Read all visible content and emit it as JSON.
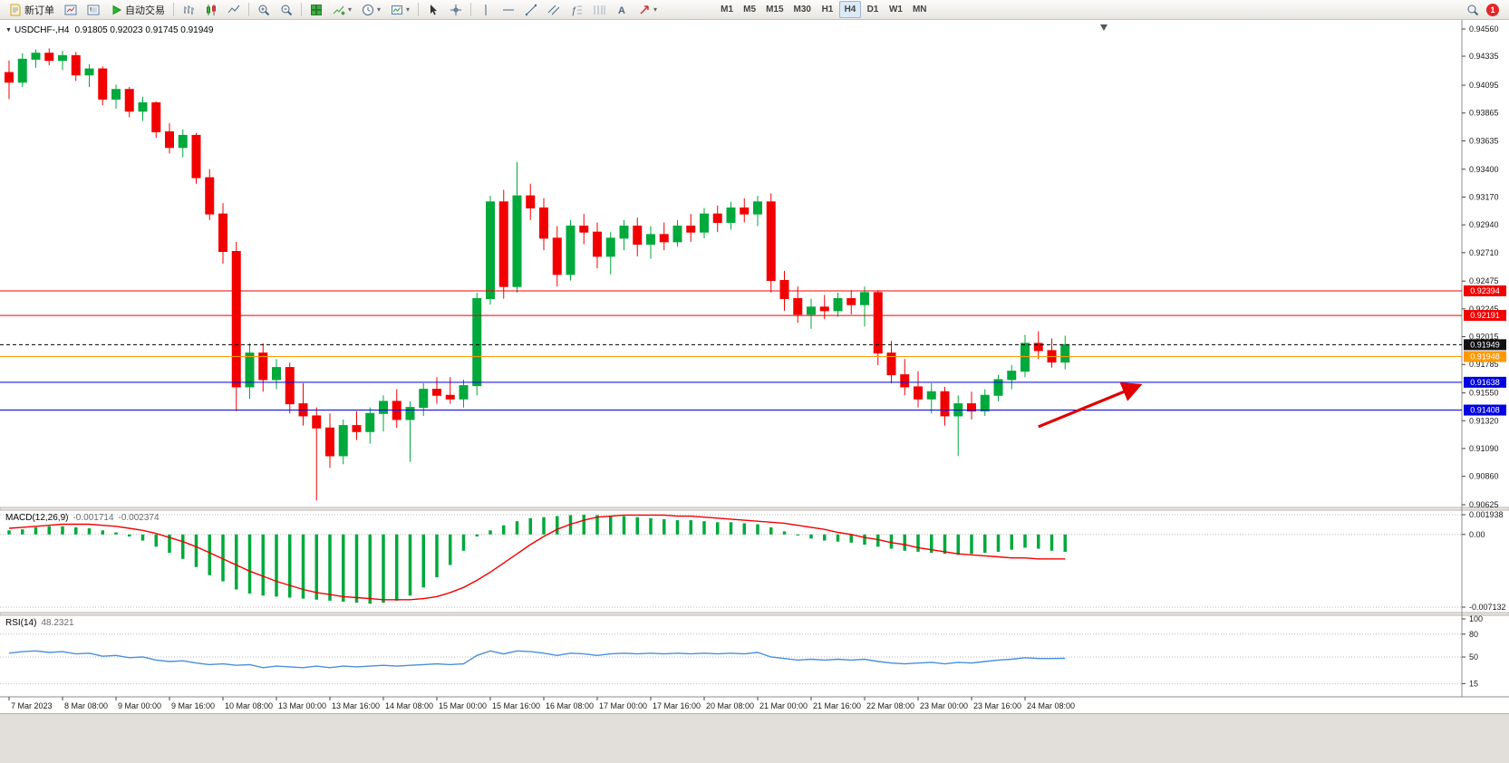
{
  "toolbar": {
    "new_order_label": "新订单",
    "auto_trading_label": "自动交易",
    "timeframes": [
      "M1",
      "M5",
      "M15",
      "M30",
      "H1",
      "H4",
      "D1",
      "W1",
      "MN"
    ],
    "active_timeframe": "H4",
    "notification_count": "1"
  },
  "chart": {
    "symbol_label": "USDCHF-,H4",
    "ohlc_text": "0.91805 0.92023 0.91745 0.91949"
  },
  "chart_data": {
    "type": "candlestick",
    "symbol": "USDCHF-",
    "timeframe": "H4",
    "ohlc_current": {
      "open": 0.91805,
      "high": 0.92023,
      "low": 0.91745,
      "close": 0.91949
    },
    "current_price": 0.91949,
    "colors": {
      "up": "#00A93C",
      "down": "#F20000",
      "macd_hist": "#00A93C",
      "macd_signal": "#F20000",
      "rsi": "#4A90D9",
      "level_red": "#F20000",
      "level_blue": "#0000E0",
      "level_orange": "#FF9900",
      "annotation": "#E00000"
    },
    "price_axis": [
      0.9456,
      0.94335,
      0.94095,
      0.93865,
      0.93635,
      0.934,
      0.9317,
      0.9294,
      0.9271,
      0.92475,
      0.92245,
      0.92015,
      0.91785,
      0.9155,
      0.9132,
      0.9109,
      0.9086,
      0.90625
    ],
    "time_axis": [
      "7 Mar 2023",
      "8 Mar 08:00",
      "9 Mar 00:00",
      "9 Mar 16:00",
      "10 Mar 08:00",
      "13 Mar 00:00",
      "13 Mar 16:00",
      "14 Mar 08:00",
      "15 Mar 00:00",
      "15 Mar 16:00",
      "16 Mar 08:00",
      "17 Mar 00:00",
      "17 Mar 16:00",
      "20 Mar 08:00",
      "21 Mar 00:00",
      "21 Mar 16:00",
      "22 Mar 08:00",
      "23 Mar 00:00",
      "23 Mar 16:00",
      "24 Mar 08:00"
    ],
    "levels": [
      {
        "price": 0.92394,
        "label": "0.92394",
        "color": "#F20000"
      },
      {
        "price": 0.92191,
        "label": "0.92191",
        "color": "#F20000"
      },
      {
        "price": 0.91948,
        "label": "0.91948",
        "color": "#FF9900"
      },
      {
        "price": 0.91638,
        "label": "0.91638",
        "color": "#0000E0"
      },
      {
        "price": 0.91408,
        "label": "0.91408",
        "color": "#0000E0"
      }
    ],
    "annotation_arrow": {
      "color": "#E00000",
      "from": {
        "t": 77,
        "p": 0.9127
      },
      "to": {
        "t": 84.5,
        "p": 0.9161
      }
    },
    "candles": [
      [
        0.942,
        0.943,
        0.9398,
        0.9412
      ],
      [
        0.9412,
        0.9436,
        0.9408,
        0.9431
      ],
      [
        0.9431,
        0.9439,
        0.9424,
        0.9436
      ],
      [
        0.9436,
        0.944,
        0.9426,
        0.943
      ],
      [
        0.943,
        0.9438,
        0.9422,
        0.9434
      ],
      [
        0.9434,
        0.9437,
        0.9413,
        0.9418
      ],
      [
        0.9418,
        0.9427,
        0.9408,
        0.9423
      ],
      [
        0.9423,
        0.9425,
        0.9393,
        0.9398
      ],
      [
        0.9398,
        0.941,
        0.939,
        0.9406
      ],
      [
        0.9406,
        0.9408,
        0.9383,
        0.9388
      ],
      [
        0.9388,
        0.94,
        0.938,
        0.9395
      ],
      [
        0.9395,
        0.9396,
        0.9366,
        0.9371
      ],
      [
        0.9371,
        0.9378,
        0.9353,
        0.9358
      ],
      [
        0.9358,
        0.9373,
        0.935,
        0.9368
      ],
      [
        0.9368,
        0.937,
        0.9328,
        0.9333
      ],
      [
        0.9333,
        0.934,
        0.9298,
        0.9303
      ],
      [
        0.9303,
        0.9312,
        0.9262,
        0.9272
      ],
      [
        0.9272,
        0.928,
        0.914,
        0.916
      ],
      [
        0.916,
        0.9196,
        0.915,
        0.9188
      ],
      [
        0.9188,
        0.9196,
        0.9156,
        0.9166
      ],
      [
        0.9166,
        0.9183,
        0.9158,
        0.9176
      ],
      [
        0.9176,
        0.918,
        0.9138,
        0.9146
      ],
      [
        0.9146,
        0.9163,
        0.9128,
        0.9136
      ],
      [
        0.9136,
        0.9143,
        0.9066,
        0.9126
      ],
      [
        0.9126,
        0.9138,
        0.9093,
        0.9103
      ],
      [
        0.9103,
        0.9133,
        0.9096,
        0.9128
      ],
      [
        0.9128,
        0.914,
        0.9116,
        0.9123
      ],
      [
        0.9123,
        0.9143,
        0.9113,
        0.9138
      ],
      [
        0.9138,
        0.9153,
        0.9123,
        0.9148
      ],
      [
        0.9148,
        0.9158,
        0.9126,
        0.9133
      ],
      [
        0.9133,
        0.9148,
        0.9098,
        0.9143
      ],
      [
        0.9143,
        0.9163,
        0.9136,
        0.9158
      ],
      [
        0.9158,
        0.9168,
        0.9146,
        0.9153
      ],
      [
        0.9153,
        0.9168,
        0.9146,
        0.915
      ],
      [
        0.915,
        0.9166,
        0.9143,
        0.9161
      ],
      [
        0.9161,
        0.9238,
        0.9153,
        0.9233
      ],
      [
        0.9233,
        0.9318,
        0.9228,
        0.9313
      ],
      [
        0.9313,
        0.9323,
        0.9233,
        0.9243
      ],
      [
        0.9243,
        0.9346,
        0.9238,
        0.9318
      ],
      [
        0.9318,
        0.9328,
        0.9298,
        0.9308
      ],
      [
        0.9308,
        0.9316,
        0.9273,
        0.9283
      ],
      [
        0.9283,
        0.9293,
        0.9243,
        0.9253
      ],
      [
        0.9253,
        0.9298,
        0.9248,
        0.9293
      ],
      [
        0.9293,
        0.9303,
        0.9278,
        0.9288
      ],
      [
        0.9288,
        0.9296,
        0.9258,
        0.9268
      ],
      [
        0.9268,
        0.9288,
        0.9253,
        0.9283
      ],
      [
        0.9283,
        0.9298,
        0.9273,
        0.9293
      ],
      [
        0.9293,
        0.93,
        0.9268,
        0.9278
      ],
      [
        0.9278,
        0.9293,
        0.9266,
        0.9286
      ],
      [
        0.9286,
        0.9296,
        0.9273,
        0.928
      ],
      [
        0.928,
        0.9298,
        0.9276,
        0.9293
      ],
      [
        0.9293,
        0.9303,
        0.928,
        0.9288
      ],
      [
        0.9288,
        0.9308,
        0.9283,
        0.9303
      ],
      [
        0.9303,
        0.931,
        0.9288,
        0.9296
      ],
      [
        0.9296,
        0.9313,
        0.929,
        0.9308
      ],
      [
        0.9308,
        0.9316,
        0.9296,
        0.9303
      ],
      [
        0.9303,
        0.9318,
        0.9293,
        0.9313
      ],
      [
        0.9313,
        0.932,
        0.9238,
        0.9248
      ],
      [
        0.9248,
        0.9256,
        0.9223,
        0.9233
      ],
      [
        0.9233,
        0.9243,
        0.9213,
        0.922
      ],
      [
        0.922,
        0.9233,
        0.9208,
        0.9226
      ],
      [
        0.9226,
        0.9236,
        0.9216,
        0.9223
      ],
      [
        0.9223,
        0.9238,
        0.9218,
        0.9233
      ],
      [
        0.9233,
        0.924,
        0.922,
        0.9228
      ],
      [
        0.9228,
        0.9243,
        0.921,
        0.9238
      ],
      [
        0.9238,
        0.924,
        0.9178,
        0.9188
      ],
      [
        0.9188,
        0.9198,
        0.9163,
        0.917
      ],
      [
        0.917,
        0.9183,
        0.9153,
        0.916
      ],
      [
        0.916,
        0.9173,
        0.9143,
        0.915
      ],
      [
        0.915,
        0.9163,
        0.9138,
        0.9156
      ],
      [
        0.9156,
        0.916,
        0.9128,
        0.9136
      ],
      [
        0.9136,
        0.9153,
        0.9103,
        0.9146
      ],
      [
        0.9146,
        0.9156,
        0.9133,
        0.914
      ],
      [
        0.914,
        0.9158,
        0.9136,
        0.9153
      ],
      [
        0.9153,
        0.917,
        0.9148,
        0.9166
      ],
      [
        0.9166,
        0.9178,
        0.9158,
        0.9173
      ],
      [
        0.9173,
        0.9203,
        0.9168,
        0.9196
      ],
      [
        0.9196,
        0.9206,
        0.9183,
        0.919
      ],
      [
        0.919,
        0.92,
        0.9176,
        0.91805
      ],
      [
        0.91805,
        0.92023,
        0.91745,
        0.91949
      ]
    ],
    "macd": {
      "name": "MACD(12,26,9)",
      "value_main": "-0.001714",
      "value_signal": "-0.002374",
      "scale_max": 0.001938,
      "scale_min": -0.007132,
      "axis_labels": [
        {
          "v": 0.001938,
          "t": "0.001938"
        },
        {
          "v": 0,
          "t": "0.00"
        },
        {
          "v": -0.007132,
          "t": "-0.007132"
        }
      ],
      "histogram": [
        0.0004,
        0.0005,
        0.0007,
        0.0008,
        0.0008,
        0.0007,
        0.0006,
        0.0004,
        0.0002,
        -0.0002,
        -0.0006,
        -0.0012,
        -0.0018,
        -0.0024,
        -0.0032,
        -0.004,
        -0.0046,
        -0.0054,
        -0.0058,
        -0.006,
        -0.0061,
        -0.0062,
        -0.0063,
        -0.0064,
        -0.0065,
        -0.0066,
        -0.0067,
        -0.0068,
        -0.0067,
        -0.0065,
        -0.006,
        -0.0052,
        -0.0042,
        -0.003,
        -0.0016,
        -0.0002,
        0.0004,
        0.0009,
        0.0013,
        0.0016,
        0.0017,
        0.0018,
        0.0019,
        0.00193,
        0.0019,
        0.00185,
        0.0018,
        0.0017,
        0.0016,
        0.0015,
        0.0014,
        0.0014,
        0.0013,
        0.0012,
        0.0012,
        0.0011,
        0.001,
        0.0007,
        0.0003,
        -0.0001,
        -0.0004,
        -0.0006,
        -0.0007,
        -0.0008,
        -0.001,
        -0.0012,
        -0.0014,
        -0.0016,
        -0.0017,
        -0.0018,
        -0.0019,
        -0.002,
        -0.0019,
        -0.0018,
        -0.0017,
        -0.0015,
        -0.0013,
        -0.0014,
        -0.0016,
        -0.0017
      ],
      "signal": [
        0.0006,
        0.0007,
        0.0008,
        0.0009,
        0.001,
        0.001,
        0.001,
        0.0009,
        0.0008,
        0.0006,
        0.0004,
        0.0001,
        -0.0003,
        -0.0007,
        -0.0012,
        -0.0018,
        -0.0024,
        -0.003,
        -0.0036,
        -0.0041,
        -0.0046,
        -0.005,
        -0.0054,
        -0.0057,
        -0.0059,
        -0.0061,
        -0.0062,
        -0.0063,
        -0.0064,
        -0.0064,
        -0.0064,
        -0.0063,
        -0.0061,
        -0.0057,
        -0.0052,
        -0.0045,
        -0.0037,
        -0.0028,
        -0.0019,
        -0.001,
        -0.0002,
        0.0005,
        0.001,
        0.0014,
        0.0017,
        0.0018,
        0.0019,
        0.0019,
        0.0019,
        0.0019,
        0.0018,
        0.0018,
        0.0017,
        0.0016,
        0.0015,
        0.0014,
        0.0013,
        0.0012,
        0.0011,
        0.0009,
        0.0007,
        0.0005,
        0.0002,
        0.0,
        -0.0003,
        -0.0005,
        -0.0008,
        -0.001,
        -0.0013,
        -0.0015,
        -0.0017,
        -0.0019,
        -0.002,
        -0.0021,
        -0.0022,
        -0.0023,
        -0.0023,
        -0.0024,
        -0.0024,
        -0.0024
      ]
    },
    "rsi": {
      "name": "RSI(14)",
      "value": "48.2321",
      "levels": [
        80,
        50,
        15
      ],
      "axis_labels": [
        {
          "v": 100,
          "t": "100"
        },
        {
          "v": 80,
          "t": "80"
        },
        {
          "v": 50,
          "t": "50"
        },
        {
          "v": 15,
          "t": "15"
        }
      ],
      "values": [
        55,
        57,
        58,
        56,
        57,
        54,
        55,
        51,
        52,
        49,
        50,
        46,
        44,
        45,
        42,
        40,
        41,
        39,
        40,
        36,
        38,
        37,
        36,
        38,
        36,
        38,
        37,
        38,
        39,
        38,
        39,
        40,
        41,
        40,
        41,
        52,
        58,
        54,
        58,
        57,
        55,
        52,
        55,
        54,
        52,
        54,
        55,
        54,
        55,
        54,
        55,
        54,
        55,
        54,
        55,
        54,
        56,
        50,
        48,
        46,
        47,
        46,
        47,
        46,
        47,
        44,
        42,
        41,
        42,
        43,
        41,
        43,
        42,
        44,
        46,
        47,
        49,
        48,
        48,
        48.23
      ]
    }
  }
}
